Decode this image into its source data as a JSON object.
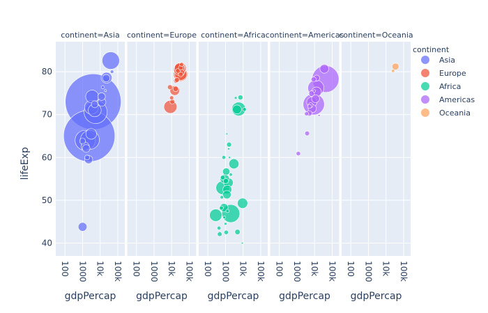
{
  "chart_data": {
    "type": "scatter",
    "x_log": true,
    "xlabel": "gdpPercap",
    "ylabel": "lifeExp",
    "ylim": [
      37,
      87
    ],
    "xlim": [
      30,
      250000
    ],
    "x_ticks": [
      {
        "value": 100,
        "label": "100"
      },
      {
        "value": 1000,
        "label": "1000"
      },
      {
        "value": 10000,
        "label": "10k"
      },
      {
        "value": 100000,
        "label": "100k"
      }
    ],
    "y_ticks": [
      40,
      50,
      60,
      70,
      80
    ],
    "legend": {
      "title": "continent",
      "placement": "right"
    },
    "facets": [
      {
        "title": "continent=Asia",
        "name": "Asia",
        "color": "#636EFA",
        "points": [
          {
            "x": 4000,
            "y": 73,
            "pop": 1300
          },
          {
            "x": 2400,
            "y": 65,
            "pop": 1100
          },
          {
            "x": 40000,
            "y": 82.6,
            "pop": 127
          },
          {
            "x": 5500,
            "y": 70.6,
            "pop": 223
          },
          {
            "x": 2600,
            "y": 64.1,
            "pop": 150
          },
          {
            "x": 1400,
            "y": 64.0,
            "pop": 169
          },
          {
            "x": 3200,
            "y": 71.7,
            "pop": 80
          },
          {
            "x": 3500,
            "y": 74.2,
            "pop": 70
          },
          {
            "x": 4900,
            "y": 71.0,
            "pop": 70
          },
          {
            "x": 3100,
            "y": 65.5,
            "pop": 48
          },
          {
            "x": 1000,
            "y": 43.8,
            "pop": 32
          },
          {
            "x": 2200,
            "y": 59.5,
            "pop": 28
          },
          {
            "x": 22000,
            "y": 78.5,
            "pop": 23
          },
          {
            "x": 23000,
            "y": 78.6,
            "pop": 49
          },
          {
            "x": 1400,
            "y": 62.6,
            "pop": 28
          },
          {
            "x": 12000,
            "y": 74.2,
            "pop": 24
          },
          {
            "x": 12500,
            "y": 72.9,
            "pop": 27
          },
          {
            "x": 1600,
            "y": 62.1,
            "pop": 25
          },
          {
            "x": 4900,
            "y": 72.4,
            "pop": 20
          },
          {
            "x": 1000,
            "y": 63.8,
            "pop": 15
          },
          {
            "x": 47000,
            "y": 80.0,
            "pop": 5
          },
          {
            "x": 20000,
            "y": 75.6,
            "pop": 1
          },
          {
            "x": 1800,
            "y": 60.0,
            "pop": 10
          },
          {
            "x": 14000,
            "y": 76.4,
            "pop": 4
          }
        ]
      },
      {
        "title": "continent=Europe",
        "name": "Europe",
        "color": "#EF553B",
        "points": [
          {
            "x": 32000,
            "y": 79.4,
            "pop": 82
          },
          {
            "x": 31000,
            "y": 80.7,
            "pop": 61
          },
          {
            "x": 33000,
            "y": 79.4,
            "pop": 60
          },
          {
            "x": 28500,
            "y": 80.5,
            "pop": 58
          },
          {
            "x": 8500,
            "y": 71.8,
            "pop": 71
          },
          {
            "x": 28000,
            "y": 80.9,
            "pop": 40
          },
          {
            "x": 15000,
            "y": 75.6,
            "pop": 38
          },
          {
            "x": 17000,
            "y": 76.0,
            "pop": 12
          },
          {
            "x": 36000,
            "y": 79.8,
            "pop": 16
          },
          {
            "x": 33000,
            "y": 79.4,
            "pop": 10
          },
          {
            "x": 23000,
            "y": 80.2,
            "pop": 10
          },
          {
            "x": 33000,
            "y": 80.9,
            "pop": 9
          },
          {
            "x": 37000,
            "y": 81.7,
            "pop": 7
          },
          {
            "x": 11000,
            "y": 73.0,
            "pop": 10
          },
          {
            "x": 8000,
            "y": 76.4,
            "pop": 10
          },
          {
            "x": 18000,
            "y": 77.9,
            "pop": 10
          },
          {
            "x": 20000,
            "y": 78.1,
            "pop": 10
          },
          {
            "x": 10000,
            "y": 73.9,
            "pop": 7
          }
        ]
      },
      {
        "title": "continent=Africa",
        "name": "Africa",
        "color": "#00CC96",
        "points": [
          {
            "x": 2000,
            "y": 46.9,
            "pop": 135
          },
          {
            "x": 690,
            "y": 52.9,
            "pop": 76
          },
          {
            "x": 5600,
            "y": 71.3,
            "pop": 80
          },
          {
            "x": 280,
            "y": 46.5,
            "pop": 64
          },
          {
            "x": 9300,
            "y": 49.3,
            "pop": 44
          },
          {
            "x": 1460,
            "y": 54.1,
            "pop": 38
          },
          {
            "x": 3000,
            "y": 58.5,
            "pop": 42
          },
          {
            "x": 1200,
            "y": 51.3,
            "pop": 29
          },
          {
            "x": 1270,
            "y": 52.5,
            "pop": 33
          },
          {
            "x": 900,
            "y": 55.0,
            "pop": 35
          },
          {
            "x": 4500,
            "y": 71.2,
            "pop": 33
          },
          {
            "x": 820,
            "y": 48.3,
            "pop": 28
          },
          {
            "x": 1100,
            "y": 56.7,
            "pop": 22
          },
          {
            "x": 1600,
            "y": 63.0,
            "pop": 10
          },
          {
            "x": 1050,
            "y": 54.5,
            "pop": 12
          },
          {
            "x": 4800,
            "y": 42.6,
            "pop": 12
          },
          {
            "x": 470,
            "y": 42.1,
            "pop": 9
          },
          {
            "x": 580,
            "y": 48.2,
            "pop": 7
          },
          {
            "x": 1100,
            "y": 42.5,
            "pop": 8
          },
          {
            "x": 700,
            "y": 55.3,
            "pop": 9
          },
          {
            "x": 800,
            "y": 60.0,
            "pop": 6
          },
          {
            "x": 430,
            "y": 43.5,
            "pop": 6
          },
          {
            "x": 620,
            "y": 50.7,
            "pop": 5
          },
          {
            "x": 1300,
            "y": 47.5,
            "pop": 5
          },
          {
            "x": 2000,
            "y": 56.0,
            "pop": 4
          },
          {
            "x": 7100,
            "y": 74.0,
            "pop": 10
          },
          {
            "x": 12000,
            "y": 71.2,
            "pop": 6
          },
          {
            "x": 3800,
            "y": 73.9,
            "pop": 3
          },
          {
            "x": 1200,
            "y": 65.5,
            "pop": 1.5
          },
          {
            "x": 1500,
            "y": 62.0,
            "pop": 2
          },
          {
            "x": 1700,
            "y": 60.0,
            "pop": 2
          },
          {
            "x": 1000,
            "y": 44.5,
            "pop": 3
          },
          {
            "x": 850,
            "y": 46.0,
            "pop": 3
          },
          {
            "x": 9000,
            "y": 40.0,
            "pop": 1
          }
        ]
      },
      {
        "title": "continent=Americas",
        "name": "Americas",
        "color": "#AB63FA",
        "points": [
          {
            "x": 42000,
            "y": 78.3,
            "pop": 301
          },
          {
            "x": 9000,
            "y": 72.4,
            "pop": 190
          },
          {
            "x": 11900,
            "y": 76.2,
            "pop": 108
          },
          {
            "x": 7000,
            "y": 72.9,
            "pop": 44
          },
          {
            "x": 12800,
            "y": 75.3,
            "pop": 40
          },
          {
            "x": 36000,
            "y": 80.7,
            "pop": 33
          },
          {
            "x": 11400,
            "y": 73.7,
            "pop": 26
          },
          {
            "x": 7400,
            "y": 71.4,
            "pop": 28
          },
          {
            "x": 13000,
            "y": 78.5,
            "pop": 16
          },
          {
            "x": 6800,
            "y": 74.9,
            "pop": 13
          },
          {
            "x": 5000,
            "y": 70.3,
            "pop": 13
          },
          {
            "x": 3800,
            "y": 65.6,
            "pop": 9
          },
          {
            "x": 1200,
            "y": 60.9,
            "pop": 8
          },
          {
            "x": 8900,
            "y": 78.2,
            "pop": 11
          },
          {
            "x": 6000,
            "y": 72.2,
            "pop": 10
          },
          {
            "x": 5200,
            "y": 71.9,
            "pop": 7
          },
          {
            "x": 3500,
            "y": 70.2,
            "pop": 7
          },
          {
            "x": 9600,
            "y": 75.5,
            "pop": 3
          },
          {
            "x": 18000,
            "y": 69.8,
            "pop": 1
          }
        ]
      },
      {
        "title": "continent=Oceania",
        "name": "Oceania",
        "color": "#FFA15A",
        "points": [
          {
            "x": 34400,
            "y": 81.2,
            "pop": 20
          },
          {
            "x": 25200,
            "y": 80.2,
            "pop": 4
          }
        ]
      }
    ]
  }
}
